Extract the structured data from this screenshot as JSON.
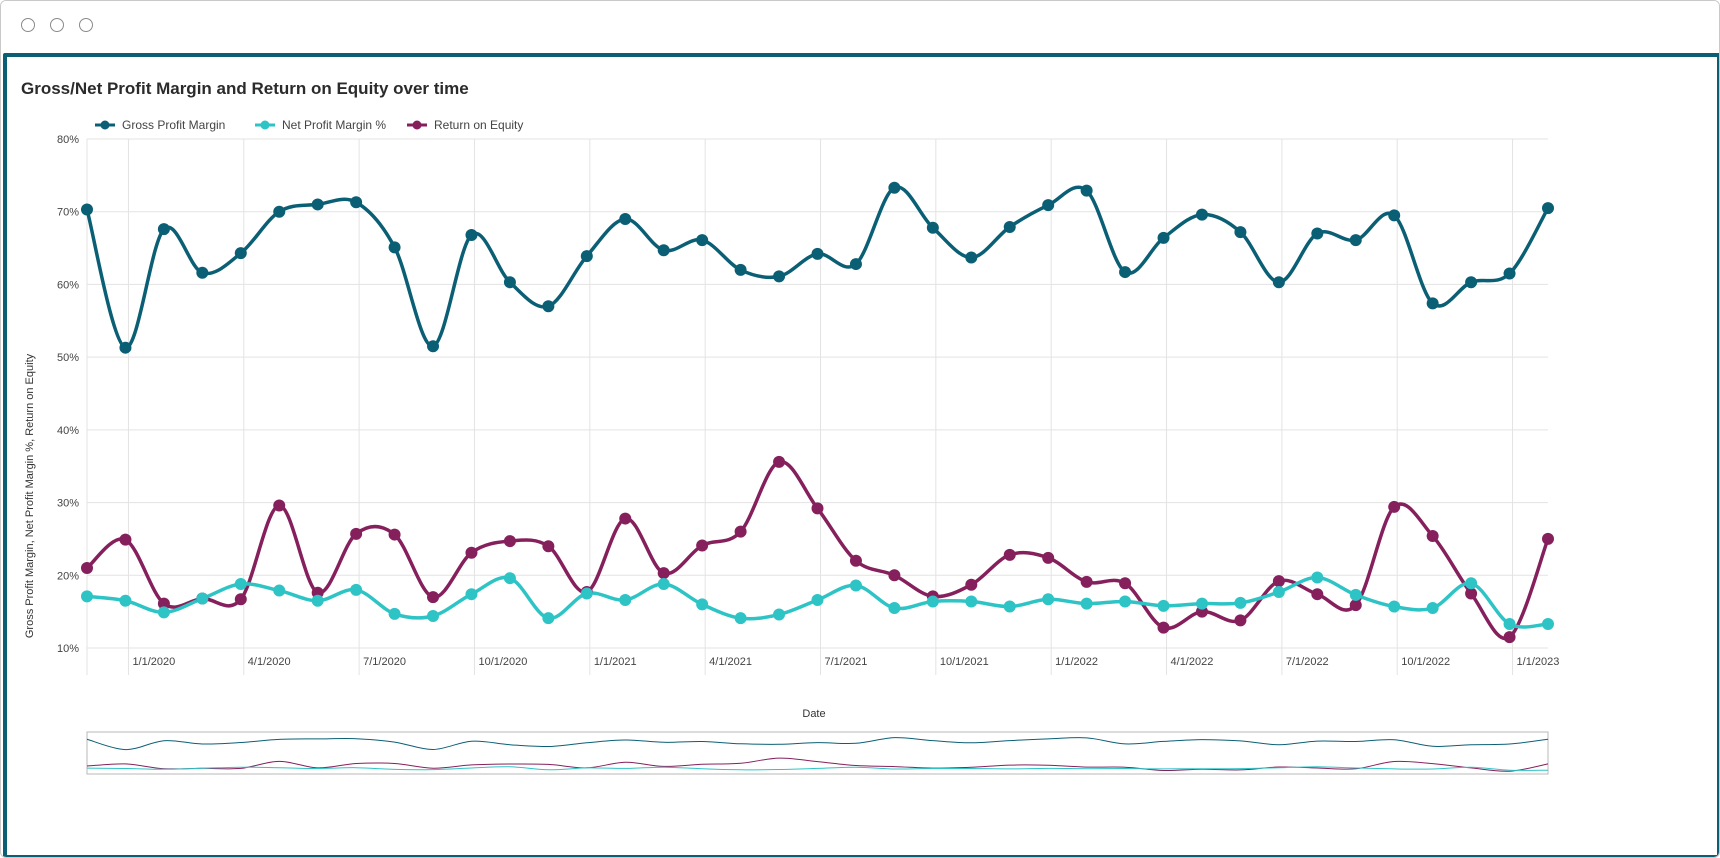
{
  "window": {
    "controls": [
      "close",
      "minimize",
      "maximize"
    ]
  },
  "panel": {
    "title": "Gross/Net Profit Margin and Return on Equity over time"
  },
  "chart_data": {
    "type": "line",
    "title": "Gross/Net Profit Margin and Return on Equity over time",
    "xlabel": "Date",
    "ylabel": "Gross Profit Margin, Net Profit Margin %, Return on Equity",
    "ylim": [
      10,
      80
    ],
    "y_ticks": [
      "10%",
      "20%",
      "30%",
      "40%",
      "50%",
      "60%",
      "70%",
      "80%"
    ],
    "x_tick_labels": [
      "1/1/2020",
      "4/1/2020",
      "7/1/2020",
      "10/1/2020",
      "1/1/2021",
      "4/1/2021",
      "7/1/2021",
      "10/1/2021",
      "1/1/2022",
      "4/1/2022",
      "7/1/2022",
      "10/1/2022",
      "1/1/2023"
    ],
    "grid": true,
    "legend_position": "top-left",
    "x": [
      "12/1/2019",
      "1/1/2020",
      "2/1/2020",
      "3/1/2020",
      "4/1/2020",
      "5/1/2020",
      "6/1/2020",
      "7/1/2020",
      "8/1/2020",
      "9/1/2020",
      "10/1/2020",
      "11/1/2020",
      "12/1/2020",
      "1/1/2021",
      "2/1/2021",
      "3/1/2021",
      "4/1/2021",
      "5/1/2021",
      "6/1/2021",
      "7/1/2021",
      "8/1/2021",
      "9/1/2021",
      "10/1/2021",
      "11/1/2021",
      "12/1/2021",
      "1/1/2022",
      "2/1/2022",
      "3/1/2022",
      "4/1/2022",
      "5/1/2022",
      "6/1/2022",
      "7/1/2022",
      "8/1/2022",
      "9/1/2022",
      "10/1/2022",
      "11/1/2022",
      "12/1/2022",
      "1/1/2023",
      "2/1/2023"
    ],
    "series": [
      {
        "name": "Gross Profit Margin",
        "color": "#0b5f75",
        "values": [
          70.3,
          51.3,
          67.6,
          61.6,
          64.3,
          70.0,
          71.0,
          71.3,
          65.1,
          51.5,
          66.8,
          60.3,
          57.0,
          63.9,
          69.0,
          64.7,
          66.1,
          62.0,
          61.1,
          64.2,
          62.8,
          73.3,
          67.8,
          63.7,
          67.9,
          70.9,
          72.9,
          61.7,
          66.4,
          69.6,
          67.2,
          60.3,
          67.0,
          66.1,
          69.5,
          57.4,
          60.3,
          61.5,
          70.5
        ]
      },
      {
        "name": "Net Profit Margin %",
        "color": "#2ec4c6",
        "values": [
          17.1,
          16.5,
          14.9,
          16.8,
          18.8,
          17.9,
          16.5,
          18.0,
          14.7,
          14.4,
          17.4,
          19.6,
          14.1,
          17.5,
          16.6,
          18.8,
          16.0,
          14.1,
          14.6,
          16.6,
          18.6,
          15.5,
          16.4,
          16.4,
          15.7,
          16.7,
          16.1,
          16.4,
          15.8,
          16.1,
          16.2,
          17.7,
          19.7,
          17.3,
          15.7,
          15.5,
          18.9,
          13.3,
          13.3
        ]
      },
      {
        "name": "Return on Equity",
        "color": "#85205d",
        "values": [
          21.0,
          24.9,
          16.1,
          16.8,
          16.7,
          29.6,
          17.6,
          25.7,
          25.6,
          17.0,
          23.1,
          24.7,
          24.0,
          17.7,
          27.8,
          20.3,
          24.1,
          26.0,
          35.6,
          29.2,
          22.0,
          20.0,
          17.1,
          18.7,
          22.8,
          22.4,
          19.1,
          18.9,
          12.8,
          15.0,
          13.8,
          19.2,
          17.4,
          15.9,
          29.4,
          25.4,
          17.5,
          11.5,
          25.0
        ]
      }
    ]
  }
}
